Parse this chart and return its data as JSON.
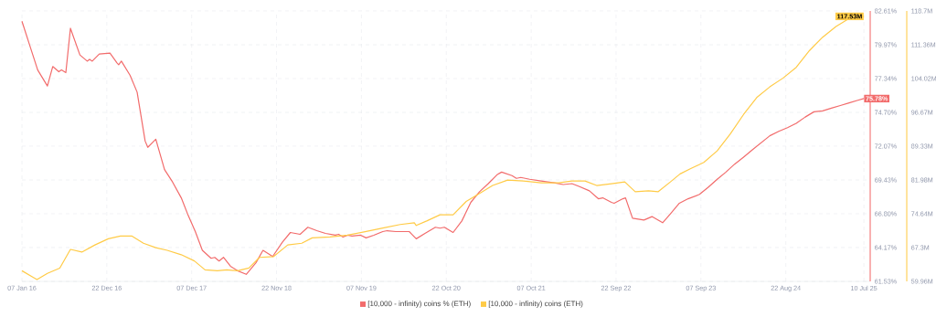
{
  "chart_data": {
    "type": "line",
    "xlim": [
      "2016-01-07",
      "2025-08-05"
    ],
    "xticks": [
      {
        "value": "2016-01-07",
        "label": "07 Jan 16"
      },
      {
        "value": "2016-12-22",
        "label": "22 Dec 16"
      },
      {
        "value": "2017-12-07",
        "label": "07 Dec 17"
      },
      {
        "value": "2018-11-22",
        "label": "22 Nov 18"
      },
      {
        "value": "2019-11-07",
        "label": "07 Nov 19"
      },
      {
        "value": "2020-10-22",
        "label": "22 Oct 20"
      },
      {
        "value": "2021-10-07",
        "label": "07 Oct 21"
      },
      {
        "value": "2022-09-22",
        "label": "22 Sep 22"
      },
      {
        "value": "2023-09-07",
        "label": "07 Sep 23"
      },
      {
        "value": "2024-08-22",
        "label": "22 Aug 24"
      },
      {
        "value": "2025-07-10",
        "label": "10 Jul 25"
      }
    ],
    "ylim": [
      61.53,
      82.61
    ],
    "yticks": [
      {
        "value": 61.53,
        "label": "61.53%"
      },
      {
        "value": 64.17,
        "label": "64.17%"
      },
      {
        "value": 66.8,
        "label": "66.80%"
      },
      {
        "value": 69.43,
        "label": "69.43%"
      },
      {
        "value": 72.07,
        "label": "72.07%"
      },
      {
        "value": 74.7,
        "label": "74.70%"
      },
      {
        "value": 77.34,
        "label": "77.34%"
      },
      {
        "value": 79.97,
        "label": "79.97%"
      },
      {
        "value": 82.61,
        "label": "82.61%"
      }
    ],
    "y2lim": [
      59.96,
      118.7
    ],
    "y2ticks": [
      {
        "value": 59.96,
        "label": "59.96M"
      },
      {
        "value": 67.3,
        "label": "67.3M"
      },
      {
        "value": 74.64,
        "label": "74.64M"
      },
      {
        "value": 81.98,
        "label": "81.98M"
      },
      {
        "value": 89.33,
        "label": "89.33M"
      },
      {
        "value": 96.67,
        "label": "96.67M"
      },
      {
        "value": 104.02,
        "label": "104.02M"
      },
      {
        "value": 111.36,
        "label": "111.36M"
      },
      {
        "value": 118.7,
        "label": "118.7M"
      }
    ],
    "grid": true,
    "legend": "bottom",
    "series": [
      {
        "name": "[10,000 - infinity) coins % (ETH)",
        "color": "#f26b6b",
        "x": [
          "2016-01-07",
          "2016-02-09",
          "2016-03-12",
          "2016-04-21",
          "2016-05-13",
          "2016-06-07",
          "2016-06-18",
          "2016-07-06",
          "2016-07-25",
          "2016-09-02",
          "2016-10-02",
          "2016-10-12",
          "2016-10-23",
          "2016-11-21",
          "2017-01-04",
          "2017-02-02",
          "2017-02-09",
          "2017-02-20",
          "2017-03-28",
          "2017-04-26",
          "2017-05-29",
          "2017-06-09",
          "2017-07-12",
          "2017-08-17",
          "2017-09-19",
          "2017-10-25",
          "2017-11-23",
          "2017-12-22",
          "2018-01-20",
          "2018-02-25",
          "2018-03-12",
          "2018-03-30",
          "2018-04-17",
          "2018-05-16",
          "2018-06-14",
          "2018-07-20",
          "2018-08-29",
          "2018-09-27",
          "2018-11-06",
          "2018-12-16",
          "2019-01-18",
          "2019-02-27",
          "2019-03-31",
          "2019-05-07",
          "2019-06-12",
          "2019-07-22",
          "2019-08-05",
          "2019-08-23",
          "2019-09-11",
          "2019-09-29",
          "2019-11-04",
          "2019-11-26",
          "2019-12-28",
          "2020-02-03",
          "2020-02-21",
          "2020-03-28",
          "2020-05-22",
          "2020-06-20",
          "2020-07-26",
          "2020-09-07",
          "2020-09-26",
          "2020-10-14",
          "2020-11-19",
          "2020-12-25",
          "2021-01-31",
          "2021-03-08",
          "2021-04-13",
          "2021-05-19",
          "2021-06-07",
          "2021-07-20",
          "2021-08-07",
          "2021-08-25",
          "2021-10-01",
          "2021-11-17",
          "2022-01-10",
          "2022-02-16",
          "2022-03-24",
          "2022-04-22",
          "2022-06-04",
          "2022-07-11",
          "2022-07-29",
          "2022-09-03",
          "2022-09-14",
          "2022-10-20",
          "2022-10-31",
          "2022-11-29",
          "2023-01-15",
          "2023-02-17",
          "2023-04-02",
          "2023-05-04",
          "2023-06-10",
          "2023-07-16",
          "2023-09-01",
          "2023-10-07",
          "2023-11-13",
          "2023-12-19",
          "2024-01-24",
          "2024-03-01",
          "2024-04-06",
          "2024-05-12",
          "2024-06-17",
          "2024-07-24",
          "2024-08-29",
          "2024-10-04",
          "2024-11-10",
          "2024-12-16",
          "2025-01-21",
          "2025-02-26",
          "2025-04-04",
          "2025-05-10",
          "2025-06-15",
          "2025-07-10"
        ],
        "values": [
          81.81,
          79.88,
          78.01,
          76.76,
          78.28,
          77.87,
          78.01,
          77.8,
          81.26,
          79.18,
          78.7,
          78.84,
          78.7,
          79.25,
          79.32,
          78.56,
          78.42,
          78.7,
          77.59,
          76.28,
          72.47,
          71.98,
          72.61,
          70.25,
          69.28,
          68.04,
          66.65,
          65.41,
          63.95,
          63.33,
          63.4,
          63.12,
          63.4,
          62.71,
          62.36,
          62.08,
          62.98,
          63.95,
          63.47,
          64.58,
          65.34,
          65.2,
          65.75,
          65.48,
          65.27,
          65.13,
          65.2,
          64.99,
          65.13,
          65.06,
          65.13,
          64.92,
          65.13,
          65.41,
          65.48,
          65.41,
          65.41,
          64.85,
          65.27,
          65.75,
          65.68,
          65.75,
          65.34,
          66.24,
          67.69,
          68.52,
          69.15,
          69.84,
          70.05,
          69.77,
          69.56,
          69.63,
          69.49,
          69.35,
          69.21,
          69.08,
          69.15,
          68.94,
          68.59,
          67.97,
          68.04,
          67.69,
          67.62,
          67.97,
          68.04,
          66.45,
          66.31,
          66.58,
          66.1,
          66.79,
          67.62,
          67.97,
          68.31,
          68.87,
          69.49,
          70.05,
          70.67,
          71.22,
          71.78,
          72.33,
          72.88,
          73.23,
          73.51,
          73.85,
          74.34,
          74.75,
          74.82,
          75.03,
          75.24,
          75.44,
          75.65,
          75.78
        ],
        "value_labels": [
          null,
          null,
          null,
          null,
          null,
          null,
          null,
          null,
          null,
          null,
          null,
          null,
          null,
          null,
          null,
          null,
          null,
          null,
          null,
          null,
          null,
          null,
          null,
          null,
          null,
          null,
          null,
          null,
          null,
          null,
          null,
          null,
          null,
          null,
          null,
          null,
          null,
          null,
          null,
          null,
          null,
          null,
          null,
          null,
          null,
          null,
          null,
          null,
          null,
          null,
          null,
          null,
          null,
          null,
          null,
          null,
          null,
          null,
          null,
          null,
          null,
          null,
          null,
          null,
          null,
          null,
          null,
          null,
          null,
          null,
          null,
          null,
          null,
          null,
          null,
          null,
          null,
          null,
          null,
          null,
          null,
          null,
          null,
          null,
          null,
          null,
          null,
          null,
          null,
          null,
          null,
          null,
          null,
          null,
          null,
          null,
          null,
          null,
          null,
          null,
          null,
          null,
          null,
          null,
          null,
          null,
          null,
          null,
          null,
          null,
          null,
          "75.78%"
        ]
      },
      {
        "name": "[10,000 - infinity) coins (ETH)",
        "color": "#ffcb47",
        "axis": "y2",
        "x": [
          "2016-01-07",
          "2016-02-20",
          "2016-03-09",
          "2016-04-21",
          "2016-06-11",
          "2016-07-25",
          "2016-09-10",
          "2016-11-03",
          "2016-12-28",
          "2017-02-16",
          "2017-04-05",
          "2017-05-22",
          "2017-07-12",
          "2017-08-28",
          "2017-10-25",
          "2017-12-18",
          "2018-01-31",
          "2018-03-23",
          "2018-05-01",
          "2018-06-14",
          "2018-07-31",
          "2018-09-13",
          "2018-11-10",
          "2019-01-07",
          "2019-03-06",
          "2019-04-18",
          "2019-06-30",
          "2019-09-11",
          "2019-11-22",
          "2020-02-03",
          "2020-04-15",
          "2020-06-12",
          "2020-06-20",
          "2020-08-02",
          "2020-09-26",
          "2020-11-19",
          "2021-01-12",
          "2021-03-08",
          "2021-05-01",
          "2021-07-02",
          "2021-09-05",
          "2021-11-17",
          "2022-01-28",
          "2022-03-24",
          "2022-05-17",
          "2022-07-04",
          "2022-09-03",
          "2022-10-28",
          "2022-12-10",
          "2023-02-03",
          "2023-03-15",
          "2023-05-04",
          "2023-06-13",
          "2023-07-27",
          "2023-09-19",
          "2023-11-13",
          "2024-01-06",
          "2024-03-01",
          "2024-04-24",
          "2024-06-17",
          "2024-08-11",
          "2024-10-04",
          "2024-11-28",
          "2025-01-21",
          "2025-03-17",
          "2025-05-10",
          "2025-07-10"
        ],
        "values": [
          62.27,
          60.92,
          60.35,
          61.7,
          62.85,
          66.9,
          66.33,
          67.87,
          69.22,
          69.8,
          69.8,
          68.25,
          67.29,
          66.71,
          65.75,
          64.4,
          62.47,
          62.27,
          62.47,
          62.27,
          62.85,
          65.17,
          65.36,
          67.87,
          68.25,
          69.41,
          69.61,
          69.99,
          70.76,
          71.53,
          72.31,
          72.69,
          72.11,
          73.08,
          74.43,
          74.43,
          77.32,
          79.06,
          80.79,
          81.95,
          81.76,
          81.37,
          81.37,
          81.76,
          81.76,
          80.79,
          81.18,
          81.57,
          79.44,
          79.64,
          79.44,
          81.57,
          83.3,
          84.46,
          85.81,
          88.32,
          91.98,
          96.23,
          99.89,
          102.21,
          104.14,
          106.45,
          110.12,
          113.01,
          115.32,
          117.06,
          117.53
        ],
        "value_labels": [
          null,
          null,
          null,
          null,
          null,
          null,
          null,
          null,
          null,
          null,
          null,
          null,
          null,
          null,
          null,
          null,
          null,
          null,
          null,
          null,
          null,
          null,
          null,
          null,
          null,
          null,
          null,
          null,
          null,
          null,
          null,
          null,
          null,
          null,
          null,
          null,
          null,
          null,
          null,
          null,
          null,
          null,
          null,
          null,
          null,
          null,
          null,
          null,
          null,
          null,
          null,
          null,
          null,
          null,
          null,
          null,
          null,
          null,
          null,
          null,
          null,
          null,
          null,
          null,
          null,
          null,
          "117.53M"
        ]
      }
    ]
  }
}
